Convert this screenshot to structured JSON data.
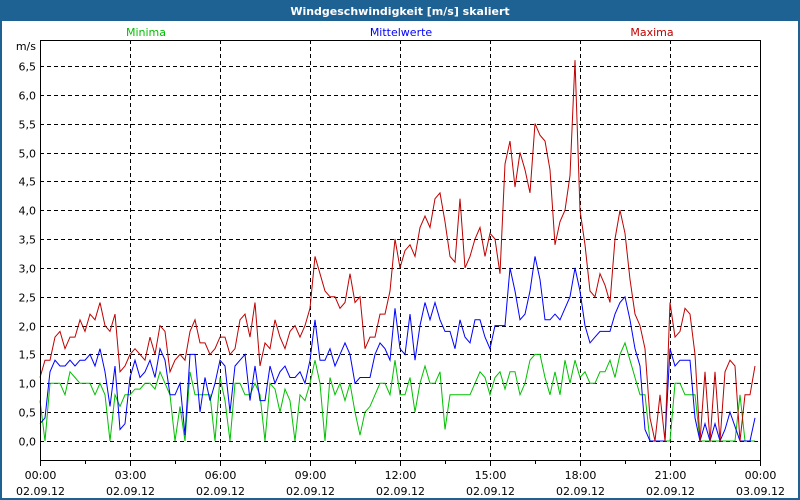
{
  "window": {
    "title": "Windgeschwindigkeit [m/s] skaliert"
  },
  "chart_data": {
    "type": "line",
    "title": "Windgeschwindigkeit [m/s] skaliert",
    "ylabel": "m/s",
    "xlabel": "",
    "ylim": [
      -0.35,
      6.9
    ],
    "xlim_hours": [
      0,
      24
    ],
    "grid": true,
    "sample_interval_minutes": 10,
    "yticks": [
      "0,0",
      "0,5",
      "1,0",
      "1,5",
      "2,0",
      "2,5",
      "3,0",
      "3,5",
      "4,0",
      "4,5",
      "5,0",
      "5,5",
      "6,0",
      "6,5"
    ],
    "xticks": [
      {
        "time": "00:00",
        "date": "02.09.12"
      },
      {
        "time": "03:00",
        "date": "02.09.12"
      },
      {
        "time": "06:00",
        "date": "02.09.12"
      },
      {
        "time": "09:00",
        "date": "02.09.12"
      },
      {
        "time": "12:00",
        "date": "02.09.12"
      },
      {
        "time": "15:00",
        "date": "02.09.12"
      },
      {
        "time": "18:00",
        "date": "02.09.12"
      },
      {
        "time": "21:00",
        "date": "02.09.12"
      },
      {
        "time": "00:00",
        "date": "03.09.12"
      }
    ],
    "legend_placement": "top",
    "series": [
      {
        "name": "Minima",
        "color": "#00c000",
        "values": [
          0.7,
          0.0,
          1.0,
          1.0,
          1.0,
          0.8,
          1.2,
          1.1,
          1.0,
          1.0,
          1.0,
          0.8,
          1.0,
          0.8,
          0.0,
          0.8,
          0.6,
          0.8,
          0.8,
          0.9,
          0.9,
          1.0,
          1.0,
          0.9,
          1.2,
          1.0,
          0.8,
          0.0,
          0.6,
          0.0,
          1.2,
          0.8,
          0.8,
          0.8,
          0.8,
          0.0,
          1.1,
          0.7,
          0.0,
          1.0,
          1.0,
          0.8,
          0.8,
          1.0,
          0.8,
          0.0,
          1.0,
          0.9,
          0.5,
          0.9,
          0.7,
          0.0,
          0.8,
          0.7,
          1.0,
          1.4,
          1.0,
          0.0,
          1.1,
          0.8,
          1.0,
          0.7,
          1.0,
          0.5,
          0.1,
          0.5,
          0.6,
          0.8,
          1.0,
          1.0,
          0.8,
          1.4,
          0.8,
          0.8,
          1.1,
          0.5,
          1.0,
          1.3,
          1.0,
          1.0,
          1.2,
          0.2,
          0.8,
          0.8,
          0.8,
          0.8,
          0.8,
          1.0,
          1.2,
          1.1,
          0.8,
          1.1,
          1.2,
          0.9,
          1.2,
          1.2,
          0.8,
          1.0,
          1.4,
          1.5,
          1.5,
          1.1,
          0.8,
          1.2,
          0.8,
          1.4,
          1.0,
          1.4,
          1.1,
          1.2,
          1.0,
          1.0,
          1.2,
          1.2,
          1.4,
          1.1,
          1.5,
          1.7,
          1.4,
          1.1,
          0.8,
          0.8,
          0,
          0,
          0,
          0,
          0,
          1.0,
          1.0,
          0.8,
          0.8,
          0.8,
          0,
          0,
          0,
          0,
          0,
          0,
          0,
          0,
          0.8,
          0,
          0,
          0
        ]
      },
      {
        "name": "Mittelwerte",
        "color": "#0000ff",
        "values": [
          0.3,
          0.4,
          1.2,
          1.4,
          1.3,
          1.3,
          1.4,
          1.3,
          1.4,
          1.4,
          1.5,
          1.3,
          1.6,
          1.2,
          0.6,
          1.3,
          0.2,
          0.3,
          1.1,
          1.4,
          1.1,
          1.2,
          1.4,
          1.1,
          1.6,
          1.4,
          0.8,
          0.8,
          1.0,
          0.1,
          1.5,
          1.5,
          0.5,
          1.1,
          0.7,
          1.0,
          1.4,
          1.3,
          0.5,
          1.3,
          1.4,
          1.5,
          0.7,
          1.3,
          0.7,
          0.7,
          1.3,
          1.0,
          1.2,
          1.3,
          1.1,
          1.1,
          1.2,
          1.0,
          1.4,
          2.1,
          1.4,
          1.4,
          1.6,
          1.3,
          1.5,
          1.7,
          1.5,
          1.0,
          1.1,
          1.1,
          1.1,
          1.5,
          1.7,
          1.6,
          1.4,
          2.3,
          1.6,
          1.5,
          2.2,
          1.4,
          2.0,
          2.4,
          2.1,
          2.4,
          2.1,
          1.9,
          1.9,
          1.6,
          2.1,
          1.8,
          1.7,
          2.1,
          2.1,
          1.8,
          1.6,
          2.0,
          2.0,
          2.0,
          3.0,
          2.6,
          2.1,
          2.2,
          2.6,
          3.2,
          2.8,
          2.1,
          2.1,
          2.2,
          2.1,
          2.3,
          2.5,
          3.0,
          2.6,
          2.0,
          1.7,
          1.8,
          1.9,
          1.9,
          1.9,
          2.2,
          2.4,
          2.5,
          2.1,
          1.6,
          1.3,
          0.2,
          0,
          0,
          0,
          0,
          1.6,
          1.3,
          1.4,
          1.4,
          1.4,
          0.4,
          0,
          0.3,
          0,
          0.3,
          0,
          0.2,
          0.5,
          0.25,
          0,
          0,
          0,
          0.4
        ]
      },
      {
        "name": "Maxima",
        "color": "#c00000",
        "values": [
          1.1,
          1.4,
          1.4,
          1.8,
          1.9,
          1.6,
          1.8,
          1.8,
          2.1,
          1.9,
          2.2,
          2.1,
          2.4,
          2.0,
          1.9,
          2.2,
          1.2,
          1.3,
          1.5,
          1.6,
          1.5,
          1.4,
          1.8,
          1.5,
          2.0,
          1.9,
          1.2,
          1.4,
          1.5,
          1.4,
          1.9,
          2.1,
          1.7,
          1.7,
          1.5,
          1.6,
          1.8,
          1.8,
          1.5,
          1.6,
          2.1,
          2.2,
          1.8,
          2.4,
          1.3,
          1.7,
          1.6,
          2.1,
          1.8,
          1.6,
          1.9,
          2.0,
          1.8,
          2.0,
          2.3,
          3.2,
          2.9,
          2.6,
          2.5,
          2.5,
          2.3,
          2.4,
          2.9,
          2.4,
          2.5,
          1.6,
          1.8,
          1.8,
          2.2,
          2.2,
          2.6,
          3.5,
          3.0,
          3.3,
          3.4,
          3.2,
          3.7,
          3.9,
          3.7,
          4.2,
          4.3,
          3.8,
          3.2,
          3.1,
          4.2,
          3.0,
          3.2,
          3.5,
          3.7,
          3.2,
          3.6,
          3.5,
          2.9,
          4.8,
          5.2,
          4.4,
          5.0,
          4.7,
          4.3,
          5.5,
          5.3,
          5.2,
          4.7,
          3.4,
          3.8,
          4.0,
          4.6,
          6.6,
          4.0,
          3.4,
          2.6,
          2.5,
          2.9,
          2.7,
          2.4,
          3.5,
          4.0,
          3.6,
          2.8,
          2.2,
          2.0,
          1.6,
          0.4,
          0,
          0.8,
          0,
          2.4,
          1.8,
          1.9,
          2.3,
          2.2,
          1.5,
          0,
          1.2,
          0,
          1.2,
          0,
          1.2,
          1.4,
          1.3,
          0,
          0.8,
          0.8,
          1.3
        ]
      }
    ]
  }
}
